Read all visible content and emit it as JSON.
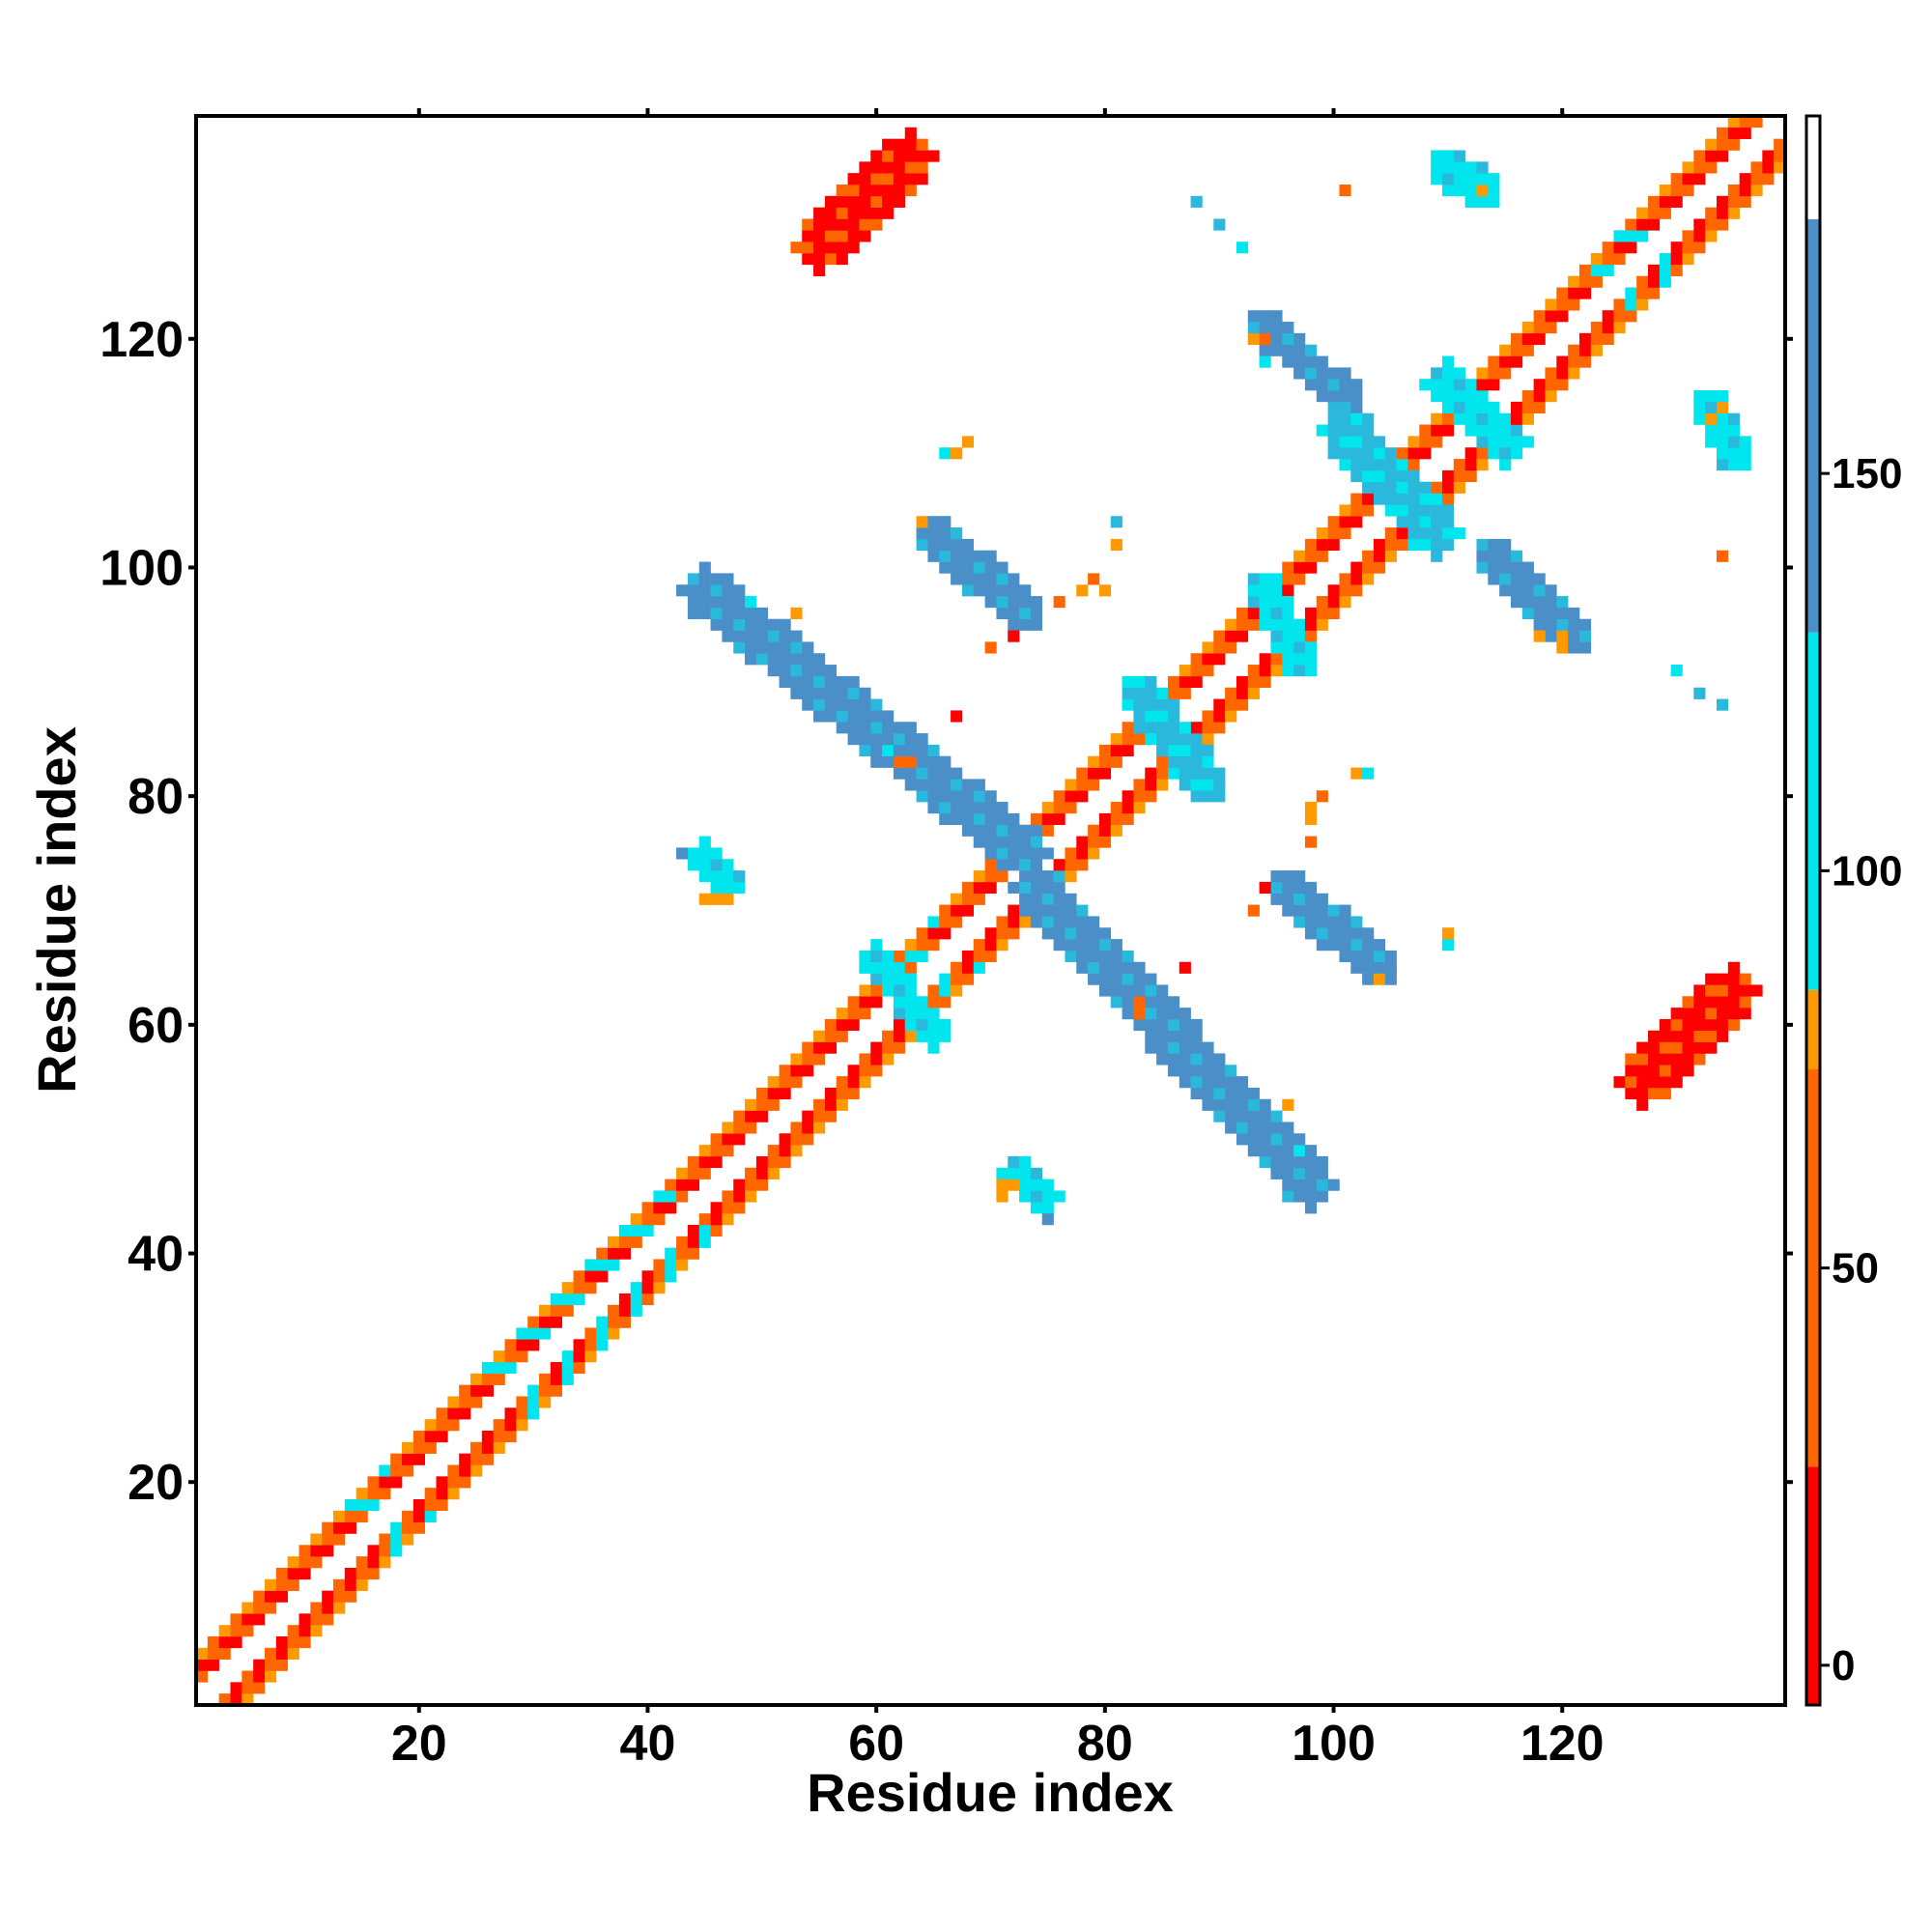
{
  "chart_data": {
    "type": "heatmap",
    "title": "",
    "xlabel": "Residue index",
    "ylabel": "Residue index",
    "xlim": [
      1,
      139
    ],
    "ylim": [
      1,
      139
    ],
    "x_ticks": [
      20,
      40,
      60,
      80,
      100,
      120
    ],
    "y_ticks": [
      20,
      40,
      60,
      80,
      100,
      120
    ],
    "colorbar": {
      "ticks": [
        0,
        50,
        100,
        150
      ],
      "range": [
        -5,
        195
      ],
      "bands": [
        {
          "from": -5,
          "to": 25,
          "color": "#ff0000"
        },
        {
          "from": 25,
          "to": 75,
          "color": "#ff6600"
        },
        {
          "from": 75,
          "to": 85,
          "color": "#ff9900"
        },
        {
          "from": 85,
          "to": 130,
          "color": "#00e5ee"
        },
        {
          "from": 130,
          "to": 182,
          "color": "#4a8fc8"
        },
        {
          "from": 182,
          "to": 195,
          "color": "#ffffff"
        }
      ]
    },
    "category_colors": {
      "red": "#ff0000",
      "orange": "#ff6600",
      "amber": "#ff9900",
      "cyan": "#00e5ee",
      "sky": "#2ab8dc",
      "blue": "#4a8fc8"
    },
    "diagonal": {
      "from": 1,
      "to": 139,
      "pattern": "red-orange alternating, cyan between 14-17, 26-42, 63-65 and 123-127"
    },
    "regions": [
      {
        "name": "antiparallel-strand-pair",
        "from": [
          55,
          128
        ],
        "to": [
          63,
          136
        ],
        "width": 2.2,
        "color": "red"
      },
      {
        "name": "antiparallel-strand-pair",
        "from": [
          127,
          55
        ],
        "to": [
          135,
          63
        ],
        "width": 2.2,
        "color": "red"
      },
      {
        "name": "cross-contact-arm",
        "from": [
          45,
          98
        ],
        "to": [
          73,
          75
        ],
        "width": 2.2,
        "color": "blue"
      },
      {
        "name": "cross-contact-arm",
        "from": [
          74,
          72
        ],
        "to": [
          98,
          46
        ],
        "width": 2.2,
        "color": "blue"
      },
      {
        "name": "helix-pair-contact",
        "from": [
          65,
          103
        ],
        "to": [
          73,
          96
        ],
        "width": 1.8,
        "color": "blue"
      },
      {
        "name": "helix-pair-contact",
        "from": [
          96,
          72
        ],
        "to": [
          104,
          65
        ],
        "width": 1.8,
        "color": "blue"
      },
      {
        "name": "helix-pair-contact",
        "from": [
          94,
          121
        ],
        "to": [
          101,
          115
        ],
        "width": 1.6,
        "color": "blue"
      },
      {
        "name": "helix-pair-contact",
        "from": [
          114,
          101
        ],
        "to": [
          121,
          94
        ],
        "width": 1.6,
        "color": "blue"
      },
      {
        "name": "cross-block",
        "from": [
          101,
          112
        ],
        "to": [
          109,
          103
        ],
        "width": 2.2,
        "color": "sky"
      },
      {
        "name": "cross-block",
        "from": [
          110,
          116
        ],
        "to": [
          115,
          111
        ],
        "width": 2.0,
        "color": "cyan"
      },
      {
        "name": "cross-block",
        "from": [
          83,
          89
        ],
        "to": [
          89,
          81
        ],
        "width": 1.8,
        "color": "sky"
      },
      {
        "name": "cross-block",
        "from": [
          94,
          98
        ],
        "to": [
          97,
          92
        ],
        "width": 1.6,
        "color": "cyan"
      },
      {
        "name": "cross-block",
        "from": [
          60,
          66
        ],
        "to": [
          65,
          59
        ],
        "width": 1.4,
        "color": "cyan"
      },
      {
        "name": "patch",
        "from": [
          110,
          135
        ],
        "to": [
          113,
          133
        ],
        "width": 1.8,
        "color": "cyan"
      },
      {
        "name": "patch",
        "from": [
          133,
          114
        ],
        "to": [
          135,
          110
        ],
        "width": 1.6,
        "color": "cyan"
      },
      {
        "name": "patch",
        "from": [
          45,
          75
        ],
        "to": [
          47,
          72
        ],
        "width": 1.4,
        "color": "cyan"
      },
      {
        "name": "patch",
        "from": [
          72,
          47
        ],
        "to": [
          75,
          45
        ],
        "width": 1.4,
        "color": "cyan"
      }
    ],
    "points": [
      {
        "x": 45,
        "y": 71,
        "color": "amber"
      },
      {
        "x": 46,
        "y": 71,
        "color": "amber"
      },
      {
        "x": 47,
        "y": 71,
        "color": "amber"
      },
      {
        "x": 43,
        "y": 75,
        "color": "blue"
      },
      {
        "x": 71,
        "y": 46,
        "color": "amber"
      },
      {
        "x": 71,
        "y": 45,
        "color": "amber"
      },
      {
        "x": 72,
        "y": 46,
        "color": "amber"
      },
      {
        "x": 75,
        "y": 43,
        "color": "blue"
      },
      {
        "x": 63,
        "y": 83,
        "color": "orange"
      },
      {
        "x": 62,
        "y": 83,
        "color": "orange"
      },
      {
        "x": 61,
        "y": 84,
        "color": "cyan"
      },
      {
        "x": 83,
        "y": 62,
        "color": "orange"
      },
      {
        "x": 83,
        "y": 61,
        "color": "orange"
      },
      {
        "x": 67,
        "y": 87,
        "color": "red"
      },
      {
        "x": 87,
        "y": 65,
        "color": "red"
      },
      {
        "x": 70,
        "y": 93,
        "color": "orange"
      },
      {
        "x": 72,
        "y": 94,
        "color": "red"
      },
      {
        "x": 93,
        "y": 70,
        "color": "orange"
      },
      {
        "x": 94,
        "y": 72,
        "color": "red"
      },
      {
        "x": 76,
        "y": 97,
        "color": "orange"
      },
      {
        "x": 78,
        "y": 98,
        "color": "amber"
      },
      {
        "x": 79,
        "y": 99,
        "color": "orange"
      },
      {
        "x": 80,
        "y": 98,
        "color": "amber"
      },
      {
        "x": 98,
        "y": 76,
        "color": "orange"
      },
      {
        "x": 98,
        "y": 78,
        "color": "amber"
      },
      {
        "x": 99,
        "y": 80,
        "color": "orange"
      },
      {
        "x": 98,
        "y": 79,
        "color": "amber"
      },
      {
        "x": 81,
        "y": 104,
        "color": "sky"
      },
      {
        "x": 81,
        "y": 102,
        "color": "amber"
      },
      {
        "x": 102,
        "y": 82,
        "color": "amber"
      },
      {
        "x": 103,
        "y": 82,
        "color": "cyan"
      },
      {
        "x": 66,
        "y": 110,
        "color": "cyan"
      },
      {
        "x": 67,
        "y": 110,
        "color": "amber"
      },
      {
        "x": 68,
        "y": 111,
        "color": "amber"
      },
      {
        "x": 110,
        "y": 67,
        "color": "cyan"
      },
      {
        "x": 110,
        "y": 68,
        "color": "amber"
      },
      {
        "x": 88,
        "y": 132,
        "color": "sky"
      },
      {
        "x": 90,
        "y": 130,
        "color": "sky"
      },
      {
        "x": 92,
        "y": 128,
        "color": "cyan"
      },
      {
        "x": 130,
        "y": 91,
        "color": "cyan"
      },
      {
        "x": 132,
        "y": 89,
        "color": "sky"
      },
      {
        "x": 134,
        "y": 88,
        "color": "sky"
      },
      {
        "x": 101,
        "y": 133,
        "color": "orange"
      },
      {
        "x": 134,
        "y": 101,
        "color": "orange"
      },
      {
        "x": 93,
        "y": 120,
        "color": "amber"
      },
      {
        "x": 94,
        "y": 120,
        "color": "orange"
      },
      {
        "x": 120,
        "y": 93,
        "color": "amber"
      },
      {
        "x": 120,
        "y": 94,
        "color": "amber"
      },
      {
        "x": 113,
        "y": 133,
        "color": "amber"
      },
      {
        "x": 112,
        "y": 132,
        "color": "cyan"
      },
      {
        "x": 133,
        "y": 113,
        "color": "amber"
      },
      {
        "x": 134,
        "y": 114,
        "color": "amber"
      },
      {
        "x": 74,
        "y": 47,
        "color": "sky"
      },
      {
        "x": 73,
        "y": 48,
        "color": "cyan"
      },
      {
        "x": 47,
        "y": 73,
        "color": "cyan"
      },
      {
        "x": 48,
        "y": 72,
        "color": "cyan"
      },
      {
        "x": 97,
        "y": 49,
        "color": "cyan"
      },
      {
        "x": 96,
        "y": 53,
        "color": "amber"
      },
      {
        "x": 49,
        "y": 97,
        "color": "cyan"
      },
      {
        "x": 53,
        "y": 96,
        "color": "amber"
      },
      {
        "x": 94,
        "y": 118,
        "color": "cyan"
      },
      {
        "x": 118,
        "y": 94,
        "color": "amber"
      },
      {
        "x": 104,
        "y": 64,
        "color": "amber"
      },
      {
        "x": 64,
        "y": 104,
        "color": "amber"
      }
    ]
  }
}
